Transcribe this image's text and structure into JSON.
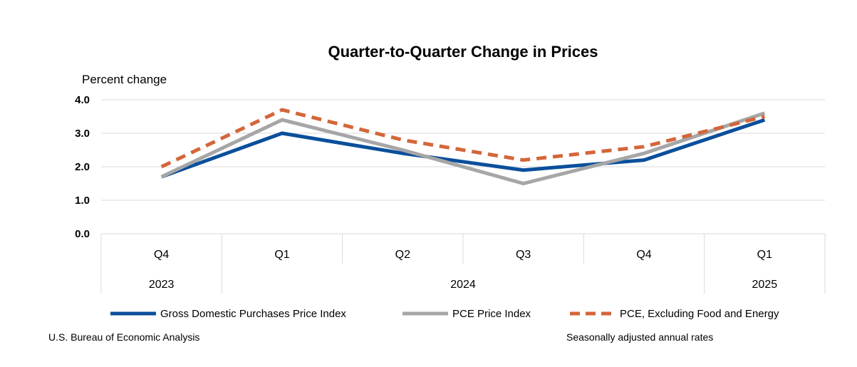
{
  "chart_data": {
    "type": "line",
    "title": "Quarter-to-Quarter Change in Prices",
    "ylabel": "Percent change",
    "ylim": [
      0,
      4
    ],
    "yticks": [
      "0.0",
      "1.0",
      "2.0",
      "3.0",
      "4.0"
    ],
    "grid": true,
    "categories": [
      "Q4",
      "Q1",
      "Q2",
      "Q3",
      "Q4",
      "Q1"
    ],
    "years": [
      {
        "label": "2023",
        "span": [
          0,
          0
        ]
      },
      {
        "label": "2024",
        "span": [
          1,
          4
        ]
      },
      {
        "label": "2025",
        "span": [
          5,
          5
        ]
      }
    ],
    "series": [
      {
        "name": "Gross Domestic Purchases Price Index",
        "color": "#0b4f9c",
        "dash": "solid",
        "values": [
          1.7,
          3.0,
          2.4,
          1.9,
          2.2,
          3.4
        ]
      },
      {
        "name": "PCE Price Index",
        "color": "#a6a6a6",
        "dash": "solid",
        "values": [
          1.7,
          3.4,
          2.5,
          1.5,
          2.4,
          3.6
        ]
      },
      {
        "name": "PCE, Excluding Food and Energy",
        "color": "#d4663a",
        "dash": "dashed",
        "values": [
          2.0,
          3.7,
          2.8,
          2.2,
          2.6,
          3.5
        ]
      }
    ],
    "legend_position": "bottom"
  },
  "footer": {
    "source": "U.S. Bureau of Economic Analysis",
    "note": "Seasonally adjusted annual rates"
  }
}
